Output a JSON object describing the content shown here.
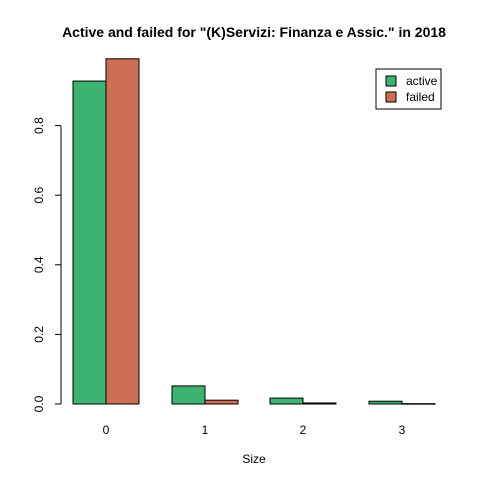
{
  "chart_data": {
    "type": "bar",
    "title": "Active and failed for \"(K)Servizi: Finanza e Assic.\" in 2018",
    "xlabel": "Size",
    "ylabel": "",
    "categories": [
      "0",
      "1",
      "2",
      "3"
    ],
    "series": [
      {
        "name": "active",
        "color": "#3cb371",
        "values": [
          0.928,
          0.052,
          0.017,
          0.008
        ]
      },
      {
        "name": "failed",
        "color": "#cd6f55",
        "values": [
          0.992,
          0.011,
          0.003,
          0.001
        ]
      }
    ],
    "yticks": [
      0.0,
      0.2,
      0.4,
      0.6,
      0.8
    ],
    "ytick_labels": [
      "0.0",
      "0.2",
      "0.4",
      "0.6",
      "0.8"
    ],
    "ylim": [
      0,
      0.992
    ],
    "grid": false,
    "legend_position": "top-right"
  }
}
